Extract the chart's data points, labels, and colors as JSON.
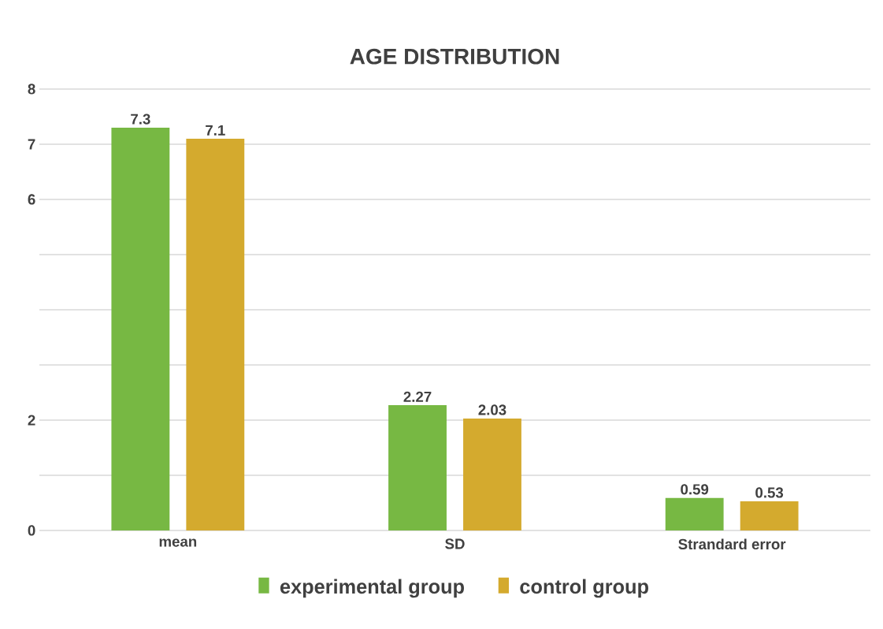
{
  "chart_data": {
    "type": "bar",
    "title": "AGE DISTRIBUTION",
    "categories": [
      "mean",
      "SD",
      "Strandard error"
    ],
    "series": [
      {
        "name": "experimental group",
        "color": "#77b843",
        "values": [
          7.3,
          2.27,
          0.59
        ]
      },
      {
        "name": "control group",
        "color": "#d4aa2e",
        "values": [
          7.1,
          2.03,
          0.53
        ]
      }
    ],
    "ylim": [
      0,
      8
    ],
    "yticks": [
      0,
      {
        "value": 1,
        "label": null
      },
      2,
      {
        "value": 3,
        "label": null
      },
      {
        "value": 4,
        "label": null
      },
      {
        "value": 5,
        "label": null
      },
      6,
      7,
      8
    ],
    "grid": "y",
    "legend": "bottom",
    "data_labels": true
  }
}
